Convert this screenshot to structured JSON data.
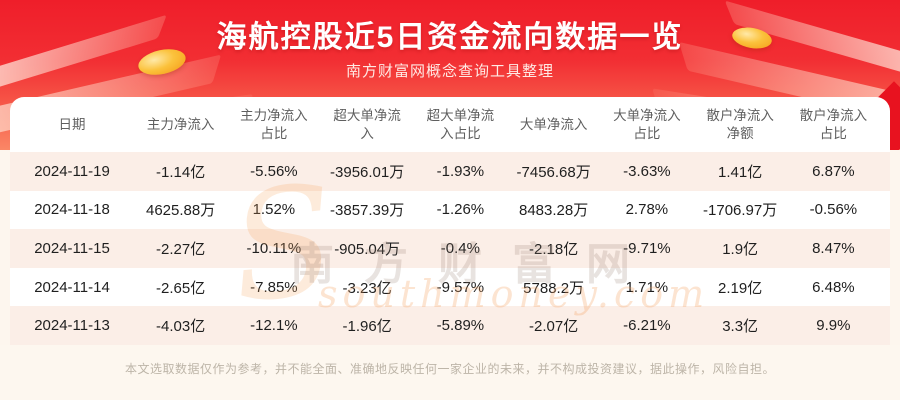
{
  "banner": {
    "title": "海航控股近5日资金流向数据一览",
    "subtitle": "南方财富网概念查询工具整理",
    "bg_top_color": "#ef1e2a",
    "bg_bottom_color": "#fa8766",
    "gold_coin_color": "#fbc23c"
  },
  "table": {
    "stripe_color": "#fbeee7",
    "headers": [
      "日期",
      "主力净流入",
      "主力净流入\n占比",
      "超大单净流\n入",
      "超大单净流\n入占比",
      "大单净流入",
      "大单净流入\n占比",
      "散户净流入\n净额",
      "散户净流入\n占比"
    ],
    "rows": [
      {
        "cells": [
          "2024-11-19",
          "-1.14亿",
          "-5.56%",
          "-3956.01万",
          "-1.93%",
          "-7456.68万",
          "-3.63%",
          "1.41亿",
          "6.87%"
        ]
      },
      {
        "cells": [
          "2024-11-18",
          "4625.88万",
          "1.52%",
          "-3857.39万",
          "-1.26%",
          "8483.28万",
          "2.78%",
          "-1706.97万",
          "-0.56%"
        ]
      },
      {
        "cells": [
          "2024-11-15",
          "-2.27亿",
          "-10.11%",
          "-905.04万",
          "-0.4%",
          "-2.18亿",
          "-9.71%",
          "1.9亿",
          "8.47%"
        ]
      },
      {
        "cells": [
          "2024-11-14",
          "-2.65亿",
          "-7.85%",
          "-3.23亿",
          "-9.57%",
          "5788.2万",
          "1.71%",
          "2.19亿",
          "6.48%"
        ]
      },
      {
        "cells": [
          "2024-11-13",
          "-4.03亿",
          "-12.1%",
          "-1.96亿",
          "-5.89%",
          "-2.07亿",
          "-6.21%",
          "3.3亿",
          "9.9%"
        ]
      }
    ]
  },
  "watermark": {
    "swirl_glyph": "S",
    "line1": "南方财富网",
    "line2": "southmoney.com"
  },
  "footer": {
    "disclaimer": "本文选取数据仅作为参考，并不能全面、准确地反映任何一家企业的未来，并不构成投资建议，据此操作，风险自担。"
  },
  "chart_data": {
    "type": "table",
    "title": "海航控股近5日资金流向数据一览",
    "subtitle": "南方财富网概念查询工具整理",
    "columns": [
      "日期",
      "主力净流入",
      "主力净流入占比",
      "超大单净流入",
      "超大单净流入占比",
      "大单净流入",
      "大单净流入占比",
      "散户净流入净额",
      "散户净流入占比"
    ],
    "rows": [
      [
        "2024-11-19",
        "-1.14亿",
        "-5.56%",
        "-3956.01万",
        "-1.93%",
        "-7456.68万",
        "-3.63%",
        "1.41亿",
        "6.87%"
      ],
      [
        "2024-11-18",
        "4625.88万",
        "1.52%",
        "-3857.39万",
        "-1.26%",
        "8483.28万",
        "2.78%",
        "-1706.97万",
        "-0.56%"
      ],
      [
        "2024-11-15",
        "-2.27亿",
        "-10.11%",
        "-905.04万",
        "-0.4%",
        "-2.18亿",
        "-9.71%",
        "1.9亿",
        "8.47%"
      ],
      [
        "2024-11-14",
        "-2.65亿",
        "-7.85%",
        "-3.23亿",
        "-9.57%",
        "5788.2万",
        "1.71%",
        "2.19亿",
        "6.48%"
      ],
      [
        "2024-11-13",
        "-4.03亿",
        "-12.1%",
        "-1.96亿",
        "-5.89%",
        "-2.07亿",
        "-6.21%",
        "3.3亿",
        "9.9%"
      ]
    ]
  }
}
